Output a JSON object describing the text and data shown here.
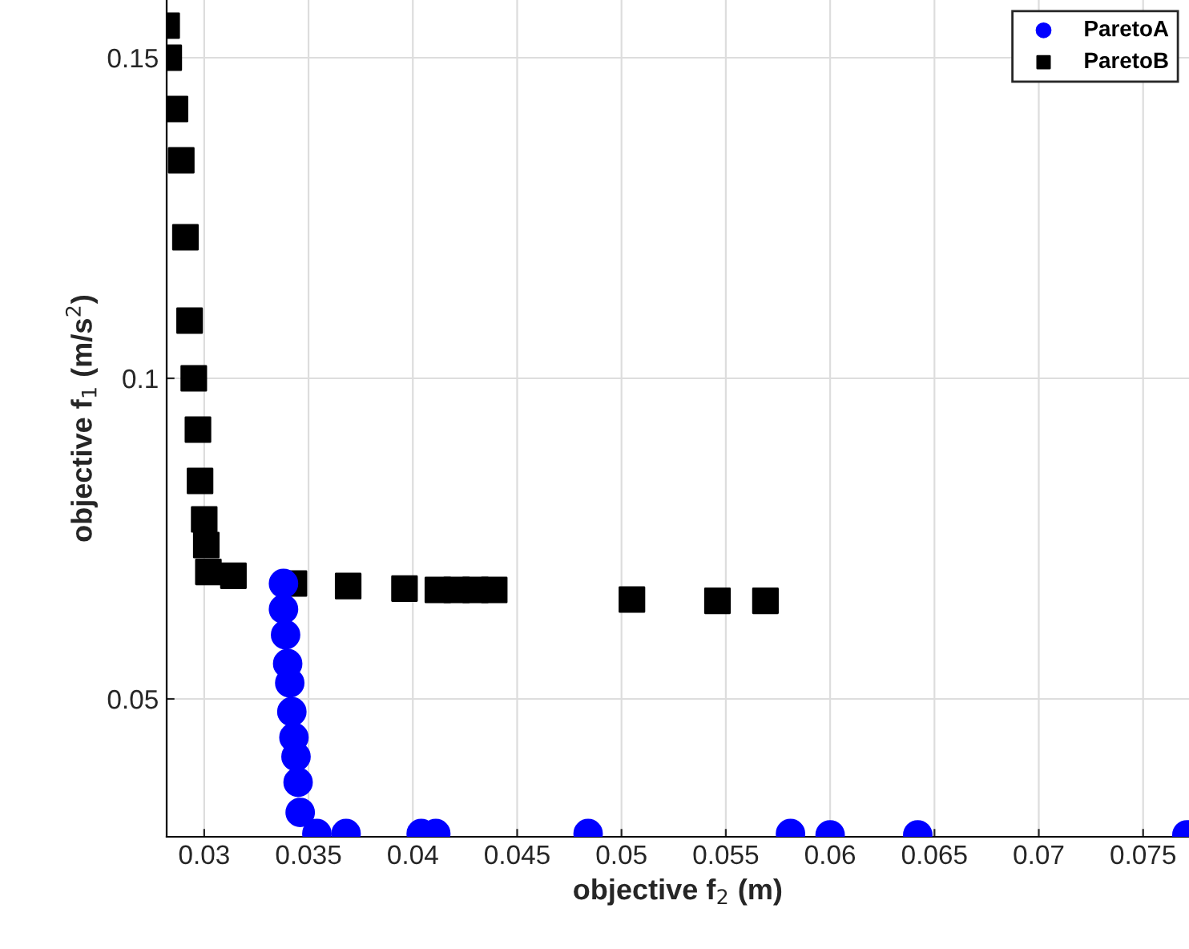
{
  "chart_data": {
    "type": "scatter",
    "xlabel": "objective f$_{2}$ (m)",
    "ylabel": "objective f$_{1}$ (m/s$^{2}$)",
    "xlim": [
      0.0282,
      0.0772
    ],
    "ylim": [
      0.0285,
      0.159
    ],
    "xticks": [
      0.03,
      0.035,
      0.04,
      0.045,
      0.05,
      0.055,
      0.06,
      0.065,
      0.07,
      0.075
    ],
    "yticks": [
      0.05,
      0.1,
      0.15
    ],
    "grid": true,
    "legend": "top right",
    "series": [
      {
        "name": "ParetoA",
        "color": "#0000ff",
        "marker": "circle",
        "x": [
          0.0338,
          0.0338,
          0.0339,
          0.034,
          0.0341,
          0.0342,
          0.0343,
          0.0344,
          0.0345,
          0.0346,
          0.0354,
          0.0368,
          0.0404,
          0.0411,
          0.0484,
          0.0581,
          0.06,
          0.0642,
          0.0771
        ],
        "values": [
          0.068,
          0.064,
          0.06,
          0.0555,
          0.0525,
          0.048,
          0.044,
          0.041,
          0.037,
          0.0323,
          0.029,
          0.029,
          0.029,
          0.029,
          0.029,
          0.029,
          0.0288,
          0.0288,
          0.0288
        ]
      },
      {
        "name": "ParetoB",
        "color": "#000000",
        "marker": "square",
        "x": [
          0.0282,
          0.0283,
          0.0286,
          0.0289,
          0.0291,
          0.0293,
          0.0295,
          0.0297,
          0.0298,
          0.03,
          0.0301,
          0.0302,
          0.0314,
          0.0343,
          0.0369,
          0.0396,
          0.0412,
          0.0421,
          0.043,
          0.0439,
          0.0505,
          0.0546,
          0.0569
        ],
        "values": [
          0.155,
          0.15,
          0.142,
          0.134,
          0.122,
          0.109,
          0.1,
          0.092,
          0.084,
          0.078,
          0.074,
          0.0698,
          0.0692,
          0.068,
          0.0676,
          0.0672,
          0.067,
          0.067,
          0.067,
          0.067,
          0.0655,
          0.0653,
          0.0653
        ]
      }
    ]
  }
}
